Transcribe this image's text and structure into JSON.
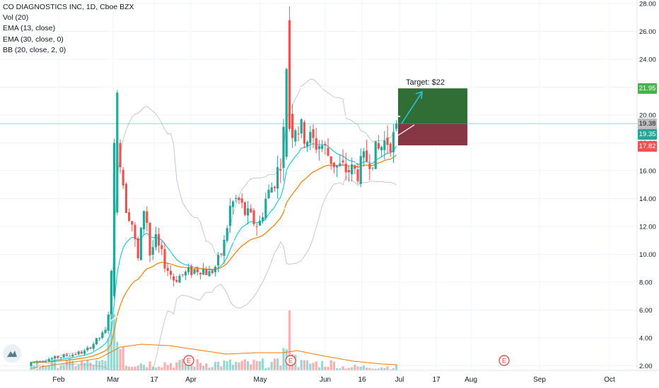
{
  "legend": {
    "title": "CO DIAGNOSTICS INC, 1D, Cboe BZX",
    "indicators": [
      "Vol (20)",
      "EMA (13, close)",
      "EMA (30, close, 0)",
      "BB (20, close, 2, 0)"
    ]
  },
  "annotation": {
    "target_label": "Target: $22"
  },
  "price_labels": {
    "target": "21.95",
    "last": "19.38",
    "current": "19.35",
    "stop": "17.82"
  },
  "colors": {
    "up": "#26a69a",
    "down": "#ef5350",
    "ema13": "#26c6da",
    "ema30": "#f57c00",
    "bb": "#9e9e9e",
    "trendline": "#ffffff",
    "target_zone": "#1b5e20",
    "stop_zone": "#7a2130",
    "earnings": "#e53935"
  },
  "chart_data": {
    "type": "candlestick",
    "y_axis": {
      "ticks": [
        "28.00",
        "26.00",
        "24.00",
        "22.00",
        "20.00",
        "18.00",
        "16.00",
        "14.00",
        "12.00",
        "10.00",
        "8.00",
        "6.00",
        "4.00",
        "2.00"
      ],
      "range": [
        1.6,
        28.2
      ]
    },
    "x_axis": {
      "ticks": [
        "Feb",
        "Mar",
        "17",
        "Apr",
        "May",
        "Jun",
        "16",
        "Jul",
        "17",
        "Aug",
        "Sep",
        "Oct"
      ]
    },
    "earnings_markers": [
      "E",
      "E",
      "E"
    ],
    "key_levels": {
      "resistance": 21.95,
      "recent_high": 19.9,
      "target": 21.95,
      "entry": 19.38,
      "stop": 17.82
    },
    "notes": "Price moves from ~2 in Feb to spike ~21.8 in early Mar, consolidates 7–12 through Apr, spikes ~26.8 in early May, then rises along an ascending trendline to ~19.4 by early Jul."
  }
}
